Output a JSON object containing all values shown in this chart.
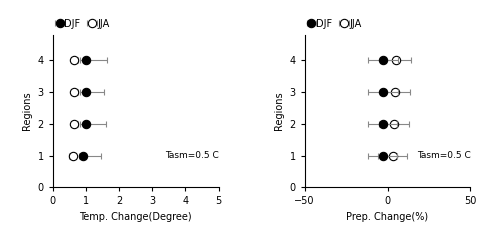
{
  "regions": [
    1,
    2,
    3,
    4
  ],
  "temp": {
    "djf_vals": [
      0.9,
      1.0,
      1.0,
      1.0
    ],
    "djf_xerr_lo": [
      0.12,
      0.18,
      0.18,
      0.18
    ],
    "djf_xerr_hi": [
      0.55,
      0.6,
      0.55,
      0.65
    ],
    "jja_vals": [
      0.6,
      0.65,
      0.65,
      0.65
    ],
    "jja_xerr_lo": [
      0.1,
      0.1,
      0.1,
      0.1
    ],
    "jja_xerr_hi": [
      0.1,
      0.1,
      0.1,
      0.1
    ],
    "xlabel": "Temp. Change(Degree)",
    "xlim": [
      0,
      5
    ],
    "xticks": [
      0,
      1,
      2,
      3,
      4,
      5
    ],
    "annotation": "Tasm=0.5 C"
  },
  "prep": {
    "djf_vals": [
      -3.0,
      -3.0,
      -2.5,
      -2.5
    ],
    "djf_xerr_lo": [
      9.0,
      9.0,
      9.0,
      9.0
    ],
    "djf_xerr_hi": [
      9.0,
      9.0,
      9.0,
      9.0
    ],
    "jja_vals": [
      3.0,
      4.0,
      4.5,
      5.0
    ],
    "jja_xerr_lo": [
      9.0,
      9.0,
      9.0,
      9.0
    ],
    "jja_xerr_hi": [
      9.0,
      9.0,
      9.0,
      9.0
    ],
    "xlabel": "Prep. Change(%)",
    "xlim": [
      -50,
      50
    ],
    "xticks": [
      -50,
      0,
      50
    ],
    "annotation": "Tasm=0.5 C"
  },
  "ylabel": "Regions",
  "ylim": [
    0,
    4.8
  ],
  "yticks": [
    0,
    1,
    2,
    3,
    4
  ],
  "legend_labels": [
    "DJF",
    "JJA"
  ],
  "djf_color": "black",
  "jja_color": "white",
  "djf_edge": "black",
  "jja_edge": "black",
  "marker_size": 6,
  "ecolor": "#888888",
  "elinewidth": 0.8,
  "capsize": 2.0
}
